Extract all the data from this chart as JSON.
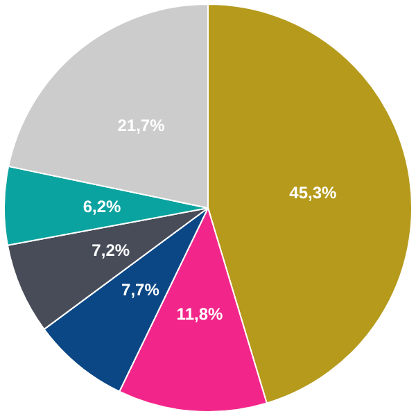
{
  "chart_data": {
    "type": "pie",
    "categories": [
      null,
      null,
      null,
      null,
      null,
      null
    ],
    "values": [
      45.3,
      11.8,
      7.7,
      7.2,
      6.2,
      21.7
    ],
    "value_labels": [
      "45,3%",
      "11,8%",
      "7,7%",
      "7,2%",
      "6,2%",
      "21,7%"
    ],
    "colors": [
      "#b59a1c",
      "#f2268a",
      "#0b4785",
      "#474c58",
      "#0ba39f",
      "#cccccc"
    ]
  }
}
